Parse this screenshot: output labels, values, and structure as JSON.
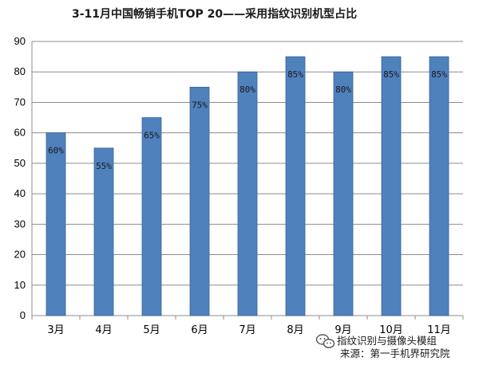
{
  "chart_data": {
    "type": "bar",
    "title": "3-11月中国畅销手机TOP 20——采用指纹识别机型占比",
    "categories": [
      "3月",
      "4月",
      "5月",
      "6月",
      "7月",
      "8月",
      "9月",
      "10月",
      "11月"
    ],
    "values": [
      60,
      55,
      65,
      75,
      80,
      85,
      80,
      85,
      85
    ],
    "data_labels": [
      "60%",
      "55%",
      "65%",
      "75%",
      "80%",
      "85%",
      "80%",
      "85%",
      "85%"
    ],
    "ylim": [
      0,
      90
    ],
    "yticks": [
      "0",
      "10",
      "20",
      "30",
      "40",
      "50",
      "60",
      "70",
      "80",
      "90"
    ],
    "xlabel": "",
    "ylabel": "",
    "grid": true,
    "legend": "none",
    "bar_color": "#4f81bd",
    "bar_edge_color": "#3a6396"
  },
  "watermark": {
    "line1": "指纹识别与摄像头模组",
    "line2": "来源：第一手机界研究院",
    "icon": "wechat-icon"
  }
}
